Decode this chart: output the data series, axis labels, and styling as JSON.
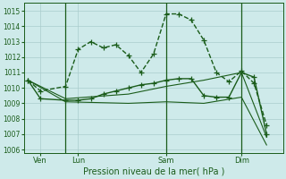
{
  "bg_color": "#ceeaea",
  "grid_color": "#aacccc",
  "line_color": "#1a5c1a",
  "title": "Pression niveau de la mer( hPa )",
  "ylabel_ticks": [
    1006,
    1007,
    1008,
    1009,
    1010,
    1011,
    1012,
    1013,
    1014,
    1015
  ],
  "ylim": [
    1005.8,
    1015.5
  ],
  "xlim": [
    -0.3,
    20.3
  ],
  "x_tick_labels": [
    "Ven",
    "Lun",
    "Sam",
    "Dim"
  ],
  "x_tick_positions": [
    1,
    4,
    11,
    17
  ],
  "x_vlines": [
    3,
    11,
    17
  ],
  "series": [
    {
      "x": [
        0,
        1,
        3,
        4,
        5,
        6,
        7,
        8,
        9,
        10,
        11,
        12,
        13,
        14,
        15,
        16,
        17,
        18,
        19
      ],
      "y": [
        1010.5,
        1009.8,
        1010.1,
        1012.5,
        1013.0,
        1012.6,
        1012.8,
        1012.1,
        1011.0,
        1012.2,
        1014.8,
        1014.8,
        1014.4,
        1013.1,
        1011.0,
        1010.4,
        1011.1,
        1010.3,
        1007.6
      ],
      "marker": "+",
      "markersize": 4,
      "linestyle": "--",
      "linewidth": 1.0
    },
    {
      "x": [
        0,
        1,
        3,
        4,
        5,
        6,
        7,
        8,
        9,
        10,
        11,
        12,
        13,
        14,
        15,
        16,
        17,
        18,
        19
      ],
      "y": [
        1010.5,
        1009.3,
        1009.2,
        1009.2,
        1009.3,
        1009.6,
        1009.8,
        1010.0,
        1010.2,
        1010.3,
        1010.5,
        1010.6,
        1010.6,
        1009.5,
        1009.4,
        1009.4,
        1011.0,
        1010.7,
        1007.0
      ],
      "marker": "+",
      "markersize": 4,
      "linestyle": "-",
      "linewidth": 1.0
    },
    {
      "x": [
        0,
        3,
        8,
        11,
        14,
        17,
        19
      ],
      "y": [
        1010.5,
        1009.1,
        1009.0,
        1009.1,
        1009.0,
        1009.4,
        1006.3
      ],
      "marker": null,
      "markersize": 0,
      "linestyle": "-",
      "linewidth": 0.8
    },
    {
      "x": [
        0,
        3,
        8,
        11,
        14,
        17,
        19
      ],
      "y": [
        1010.5,
        1009.3,
        1009.6,
        1010.1,
        1010.5,
        1011.0,
        1006.8
      ],
      "marker": null,
      "markersize": 0,
      "linestyle": "-",
      "linewidth": 0.8
    }
  ]
}
